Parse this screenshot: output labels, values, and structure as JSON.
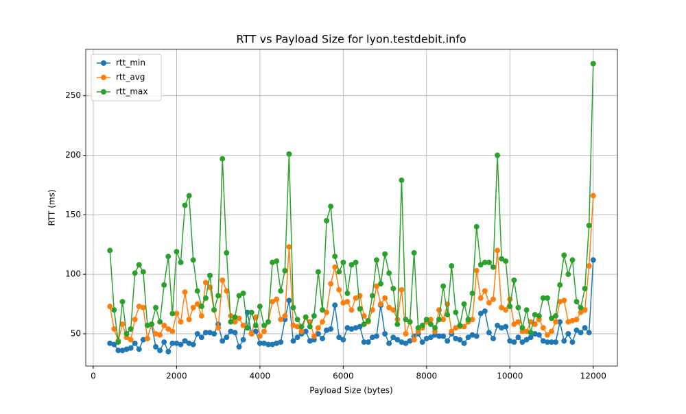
{
  "chart_data": {
    "type": "line",
    "title": "RTT vs Payload Size for lyon.testdebit.info",
    "x_label": "Payload Size (bytes)",
    "y_label": "RTT (ms)",
    "x": [
      400,
      500,
      600,
      700,
      800,
      900,
      1000,
      1100,
      1200,
      1300,
      1400,
      1500,
      1600,
      1700,
      1800,
      1900,
      2000,
      2100,
      2200,
      2300,
      2400,
      2500,
      2600,
      2700,
      2800,
      2900,
      3000,
      3100,
      3200,
      3300,
      3400,
      3500,
      3600,
      3700,
      3800,
      3900,
      4000,
      4100,
      4200,
      4300,
      4400,
      4500,
      4600,
      4700,
      4800,
      4900,
      5000,
      5100,
      5200,
      5300,
      5400,
      5500,
      5600,
      5700,
      5800,
      5900,
      6000,
      6100,
      6200,
      6300,
      6400,
      6500,
      6600,
      6700,
      6800,
      6900,
      7000,
      7100,
      7200,
      7300,
      7400,
      7500,
      7600,
      7700,
      7800,
      7900,
      8000,
      8100,
      8200,
      8300,
      8400,
      8500,
      8600,
      8700,
      8800,
      8900,
      9000,
      9100,
      9200,
      9300,
      9400,
      9500,
      9600,
      9700,
      9800,
      9900,
      10000,
      10100,
      10200,
      10300,
      10400,
      10500,
      10600,
      10700,
      10800,
      10900,
      11000,
      11100,
      11200,
      11300,
      11400,
      11500,
      11600,
      11700,
      11800,
      11900,
      12000
    ],
    "series": [
      {
        "name": "rtt_min",
        "color": "#1f77b4",
        "values": [
          42,
          41,
          36,
          36,
          37,
          38,
          42,
          37,
          45,
          46,
          58,
          39,
          36,
          43,
          35,
          42,
          42,
          41,
          44,
          42,
          41,
          50,
          47,
          51,
          51,
          50,
          58,
          44,
          47,
          52,
          51,
          39,
          45,
          68,
          50,
          52,
          42,
          42,
          41,
          41,
          42,
          43,
          62,
          78,
          44,
          47,
          50,
          52,
          44,
          45,
          50,
          46,
          53,
          54,
          74,
          47,
          45,
          55,
          54,
          55,
          56,
          43,
          43,
          47,
          48,
          74,
          50,
          42,
          47,
          45,
          43,
          42,
          44,
          48,
          50,
          43,
          46,
          47,
          49,
          48,
          48,
          44,
          50,
          46,
          45,
          42,
          47,
          49,
          48,
          67,
          69,
          51,
          46,
          57,
          55,
          56,
          44,
          43,
          47,
          43,
          45,
          47,
          50,
          49,
          44,
          43,
          43,
          43,
          60,
          44,
          50,
          43,
          53,
          51,
          55,
          51,
          112
        ]
      },
      {
        "name": "rtt_avg",
        "color": "#ff7f0e",
        "values": [
          73,
          54,
          44,
          58,
          47,
          45,
          62,
          73,
          72,
          46,
          58,
          50,
          49,
          57,
          54,
          52,
          67,
          60,
          85,
          62,
          72,
          75,
          65,
          93,
          89,
          70,
          55,
          95,
          86,
          65,
          60,
          63,
          57,
          55,
          50,
          64,
          48,
          52,
          60,
          77,
          79,
          62,
          65,
          123,
          57,
          56,
          52,
          64,
          60,
          48,
          55,
          60,
          68,
          92,
          106,
          87,
          76,
          77,
          70,
          80,
          82,
          65,
          60,
          70,
          90,
          75,
          80,
          72,
          70,
          62,
          87,
          50,
          60,
          45,
          52,
          55,
          60,
          62,
          52,
          70,
          62,
          75,
          52,
          55,
          56,
          56,
          60,
          62,
          103,
          80,
          86,
          76,
          79,
          120,
          72,
          70,
          79,
          58,
          60,
          52,
          52,
          60,
          58,
          62,
          55,
          49,
          52,
          60,
          77,
          78,
          60,
          61,
          62,
          68,
          70,
          107,
          166
        ]
      },
      {
        "name": "rtt_max",
        "color": "#2ca02c",
        "values": [
          120,
          70,
          43,
          77,
          50,
          54,
          101,
          108,
          102,
          57,
          58,
          72,
          60,
          91,
          115,
          67,
          119,
          110,
          158,
          166,
          112,
          86,
          73,
          80,
          99,
          70,
          82,
          197,
          118,
          60,
          64,
          82,
          84,
          55,
          68,
          57,
          73,
          57,
          60,
          110,
          111,
          86,
          103,
          201,
          72,
          62,
          56,
          64,
          56,
          65,
          102,
          70,
          145,
          157,
          115,
          102,
          110,
          84,
          108,
          110,
          71,
          58,
          61,
          82,
          112,
          92,
          117,
          101,
          88,
          58,
          179,
          62,
          60,
          118,
          55,
          57,
          62,
          58,
          55,
          62,
          90,
          66,
          107,
          68,
          57,
          75,
          62,
          84,
          140,
          108,
          110,
          110,
          106,
          200,
          113,
          111,
          73,
          95,
          72,
          55,
          70,
          51,
          66,
          65,
          80,
          80,
          63,
          65,
          91,
          116,
          100,
          112,
          77,
          72,
          88,
          141,
          277
        ]
      }
    ],
    "xlim": [
      -180,
      12580
    ],
    "ylim": [
      22.9,
      289
    ],
    "xticks": [
      0,
      2000,
      4000,
      6000,
      8000,
      10000,
      12000
    ],
    "yticks": [
      50,
      100,
      150,
      200,
      250
    ],
    "grid": true,
    "legend": "upper left"
  }
}
